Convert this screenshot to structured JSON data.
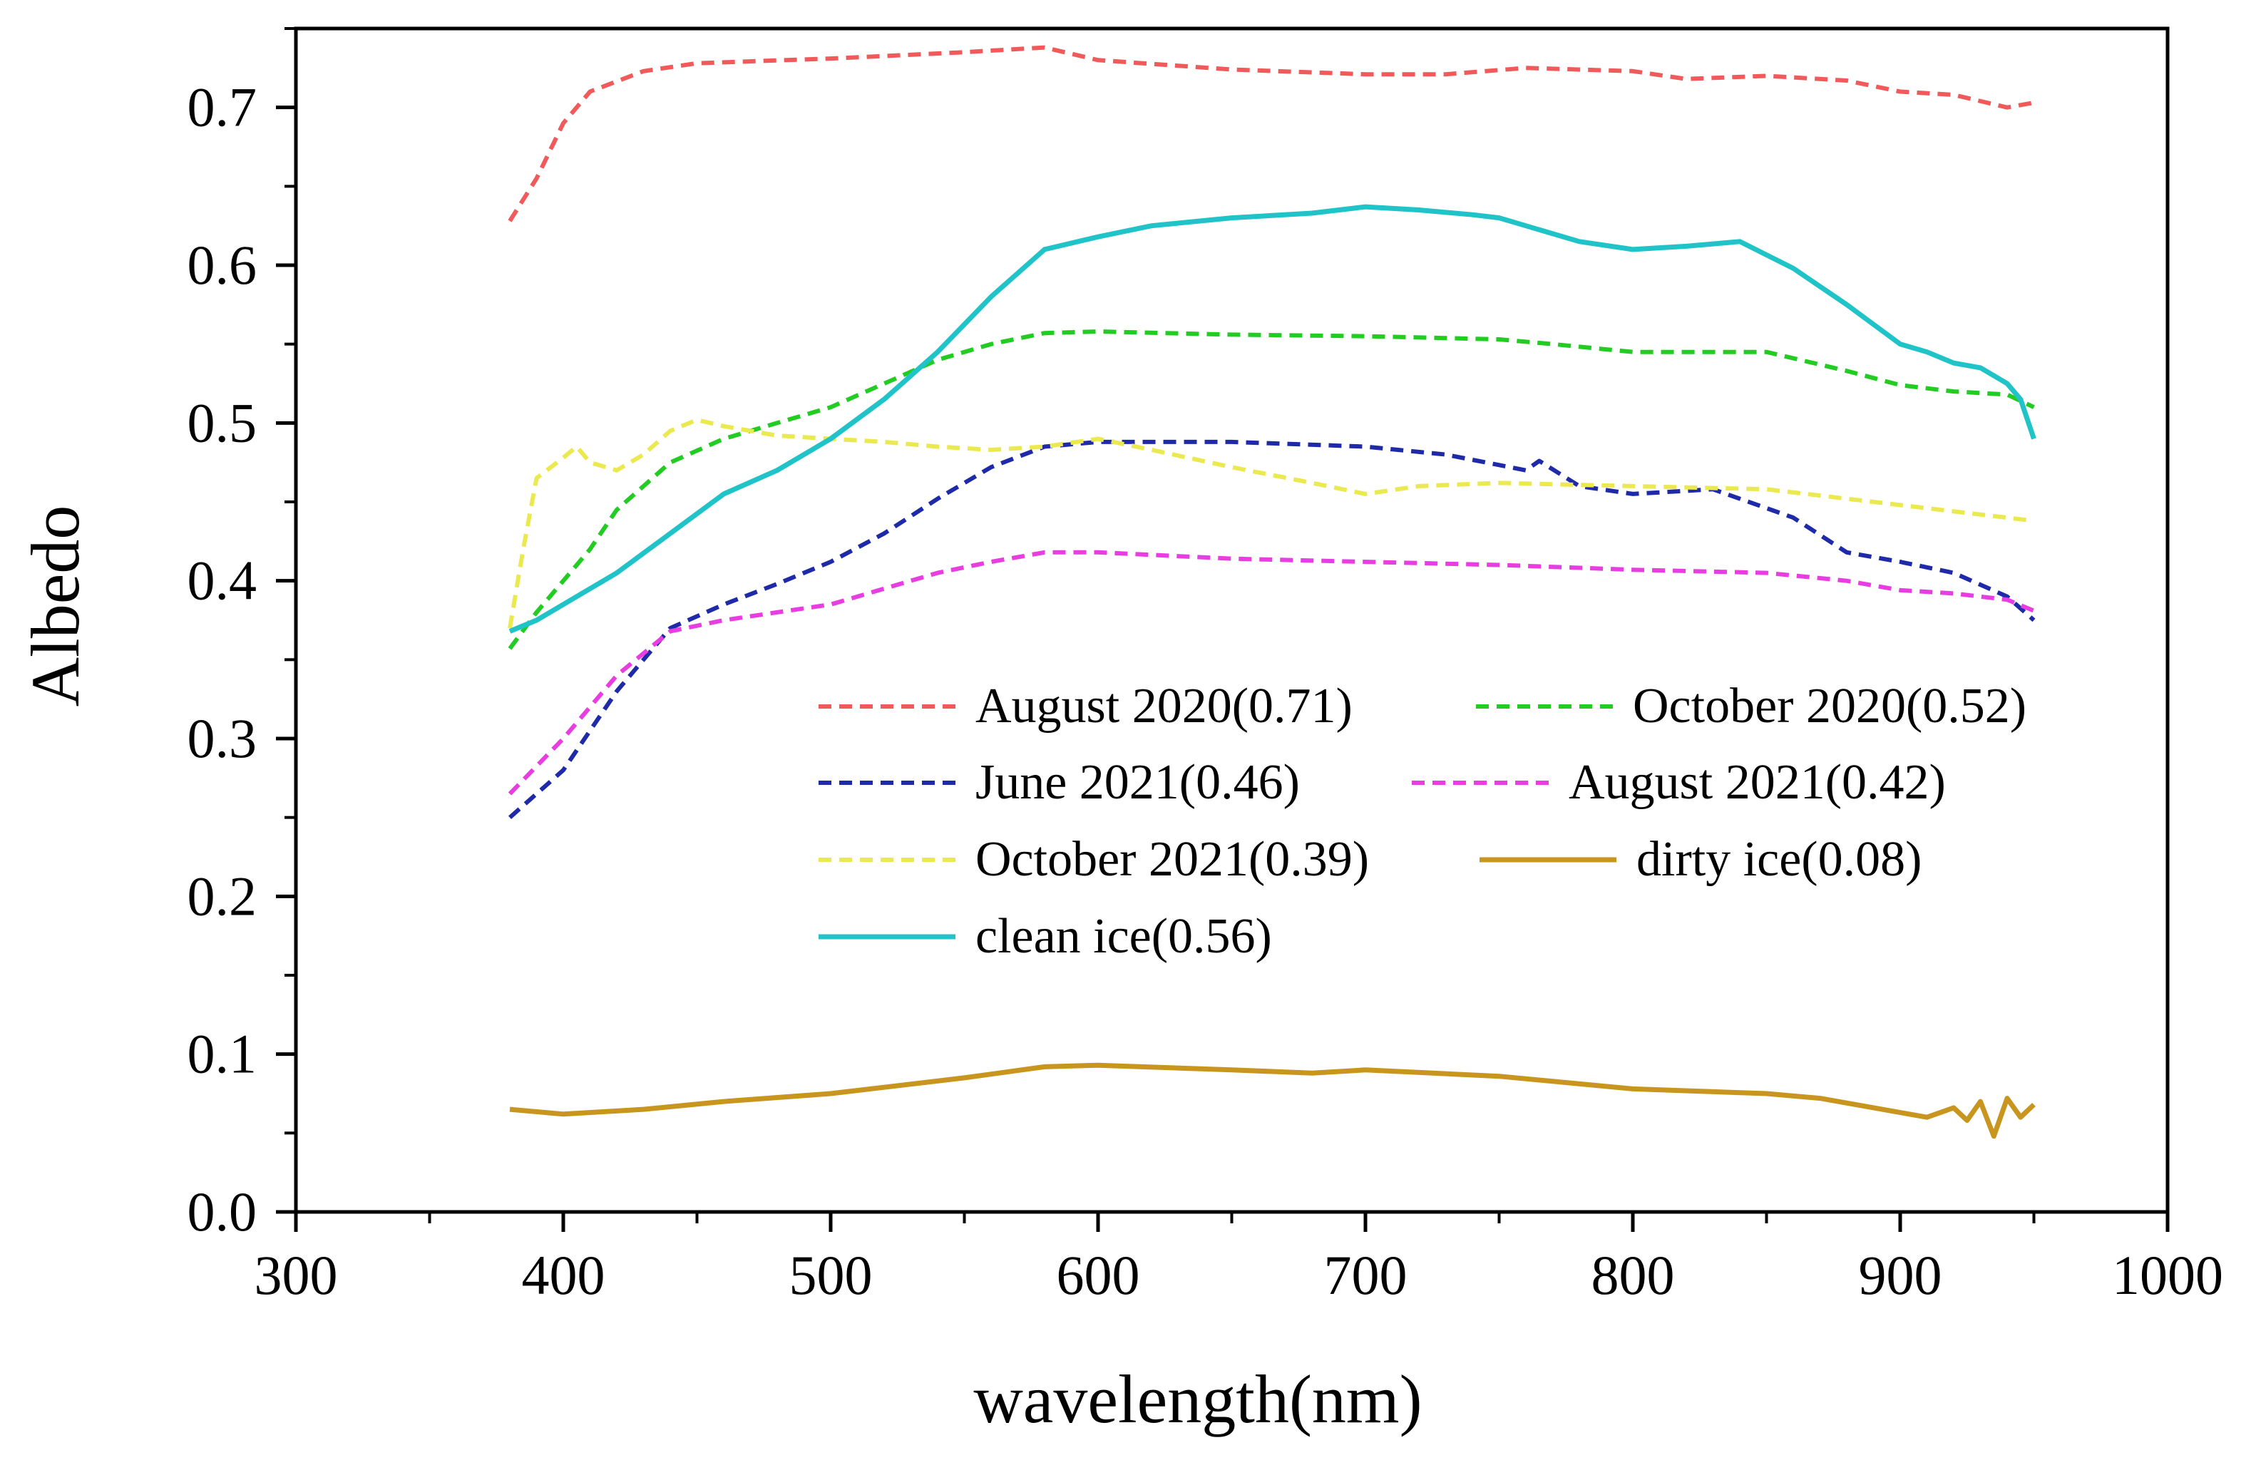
{
  "chart_data": {
    "type": "line",
    "title": "",
    "xlabel": "wavelength(nm)",
    "ylabel": "Albedo",
    "xlim": [
      300,
      1000
    ],
    "ylim": [
      0.0,
      0.75
    ],
    "xticks": [
      300,
      400,
      500,
      600,
      700,
      800,
      900,
      1000
    ],
    "xtick_labels": [
      "300",
      "400",
      "500",
      "600",
      "700",
      "800",
      "900",
      "1000"
    ],
    "yticks": [
      0.0,
      0.1,
      0.2,
      0.3,
      0.4,
      0.5,
      0.6,
      0.7
    ],
    "ytick_labels": [
      "0.0",
      "0.1",
      "0.2",
      "0.3",
      "0.4",
      "0.5",
      "0.6",
      "0.7"
    ],
    "grid": false,
    "legend_position": "center-right",
    "series": [
      {
        "name": "August 2020(0.71)",
        "color": "#f05a5a",
        "dash": "dashed",
        "x": [
          380,
          390,
          400,
          410,
          430,
          450,
          500,
          550,
          580,
          600,
          650,
          700,
          730,
          760,
          800,
          820,
          850,
          880,
          900,
          920,
          940,
          950
        ],
        "y": [
          0.628,
          0.655,
          0.69,
          0.71,
          0.723,
          0.728,
          0.731,
          0.735,
          0.738,
          0.73,
          0.724,
          0.721,
          0.721,
          0.725,
          0.723,
          0.718,
          0.72,
          0.717,
          0.71,
          0.708,
          0.7,
          0.703
        ]
      },
      {
        "name": "October 2020(0.52)",
        "color": "#22cc22",
        "dash": "dashed",
        "x": [
          380,
          390,
          400,
          410,
          420,
          440,
          460,
          480,
          500,
          520,
          540,
          560,
          580,
          600,
          650,
          700,
          750,
          770,
          800,
          850,
          880,
          900,
          920,
          940,
          950
        ],
        "y": [
          0.357,
          0.38,
          0.4,
          0.42,
          0.445,
          0.475,
          0.49,
          0.5,
          0.51,
          0.525,
          0.54,
          0.55,
          0.557,
          0.558,
          0.556,
          0.555,
          0.553,
          0.55,
          0.545,
          0.545,
          0.533,
          0.524,
          0.52,
          0.518,
          0.51
        ]
      },
      {
        "name": "June 2021(0.46)",
        "color": "#1e2aa8",
        "dash": "dashed",
        "x": [
          380,
          400,
          420,
          440,
          460,
          480,
          500,
          520,
          540,
          560,
          580,
          600,
          650,
          700,
          730,
          760,
          765,
          780,
          800,
          830,
          860,
          880,
          900,
          920,
          940,
          950
        ],
        "y": [
          0.25,
          0.28,
          0.33,
          0.37,
          0.385,
          0.398,
          0.412,
          0.43,
          0.452,
          0.472,
          0.485,
          0.488,
          0.488,
          0.485,
          0.48,
          0.47,
          0.476,
          0.46,
          0.455,
          0.458,
          0.44,
          0.418,
          0.412,
          0.405,
          0.39,
          0.375
        ]
      },
      {
        "name": "August 2021(0.42)",
        "color": "#e83de0",
        "dash": "dashed",
        "x": [
          380,
          400,
          420,
          440,
          460,
          480,
          500,
          520,
          540,
          560,
          580,
          600,
          650,
          700,
          750,
          800,
          850,
          880,
          900,
          920,
          940,
          950
        ],
        "y": [
          0.265,
          0.3,
          0.34,
          0.368,
          0.375,
          0.38,
          0.385,
          0.395,
          0.405,
          0.412,
          0.418,
          0.418,
          0.414,
          0.412,
          0.41,
          0.407,
          0.405,
          0.4,
          0.394,
          0.392,
          0.388,
          0.381
        ]
      },
      {
        "name": "October 2021(0.39)",
        "color": "#eaea50",
        "dash": "dashed",
        "x": [
          380,
          385,
          390,
          400,
          405,
          410,
          420,
          430,
          440,
          450,
          460,
          480,
          500,
          520,
          540,
          560,
          580,
          600,
          620,
          650,
          680,
          700,
          720,
          750,
          800,
          850,
          900,
          950
        ],
        "y": [
          0.37,
          0.42,
          0.465,
          0.478,
          0.485,
          0.475,
          0.47,
          0.48,
          0.495,
          0.502,
          0.498,
          0.492,
          0.49,
          0.488,
          0.485,
          0.483,
          0.485,
          0.49,
          0.483,
          0.472,
          0.462,
          0.455,
          0.46,
          0.462,
          0.46,
          0.458,
          0.448,
          0.438
        ]
      },
      {
        "name": "dirty ice(0.08)",
        "color": "#c8961e",
        "dash": "solid",
        "x": [
          380,
          400,
          430,
          460,
          500,
          550,
          580,
          600,
          650,
          680,
          700,
          750,
          800,
          850,
          870,
          900,
          910,
          920,
          925,
          930,
          935,
          940,
          945,
          950
        ],
        "y": [
          0.065,
          0.062,
          0.065,
          0.07,
          0.075,
          0.085,
          0.092,
          0.093,
          0.09,
          0.088,
          0.09,
          0.086,
          0.078,
          0.075,
          0.072,
          0.063,
          0.06,
          0.066,
          0.058,
          0.07,
          0.048,
          0.072,
          0.06,
          0.068
        ]
      },
      {
        "name": "clean ice(0.56)",
        "color": "#20c4c8",
        "dash": "solid",
        "x": [
          380,
          390,
          400,
          420,
          440,
          460,
          480,
          500,
          520,
          540,
          560,
          580,
          600,
          620,
          650,
          680,
          700,
          720,
          740,
          750,
          760,
          780,
          800,
          820,
          840,
          860,
          880,
          900,
          910,
          920,
          930,
          940,
          945,
          950
        ],
        "y": [
          0.368,
          0.375,
          0.385,
          0.405,
          0.43,
          0.455,
          0.47,
          0.49,
          0.515,
          0.545,
          0.58,
          0.61,
          0.618,
          0.625,
          0.63,
          0.633,
          0.637,
          0.635,
          0.632,
          0.63,
          0.625,
          0.615,
          0.61,
          0.612,
          0.615,
          0.598,
          0.575,
          0.55,
          0.545,
          0.538,
          0.535,
          0.525,
          0.515,
          0.49
        ]
      }
    ]
  }
}
